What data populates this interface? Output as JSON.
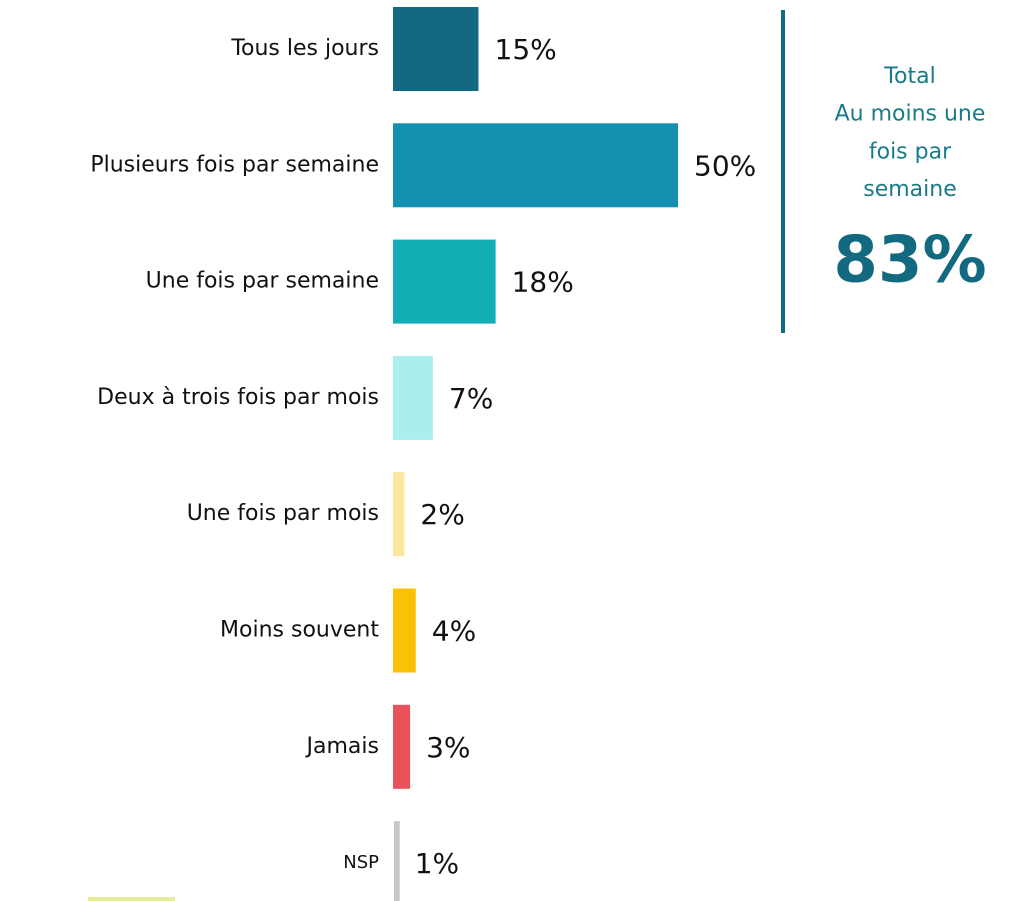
{
  "chart_data": {
    "type": "bar",
    "orientation": "horizontal",
    "categories": [
      "Tous les jours",
      "Plusieurs fois par semaine",
      "Une fois par semaine",
      "Deux à trois fois par mois",
      "Une fois par mois",
      "Moins souvent",
      "Jamais",
      "NSP"
    ],
    "values": [
      15,
      50,
      18,
      7,
      2,
      4,
      3,
      1
    ],
    "value_labels": [
      "15%",
      "50%",
      "18%",
      "7%",
      "2%",
      "4%",
      "3%",
      "1%"
    ],
    "colors": [
      "#136a80",
      "#1591b0",
      "#14aeb7",
      "#aaeeee",
      "#fde6a0",
      "#fbc108",
      "#e8525a",
      "#c8c8c8"
    ],
    "annotation": {
      "lines": [
        "Total",
        "Au moins une",
        "fois par",
        "semaine"
      ],
      "value": 83,
      "value_label": "83%"
    }
  }
}
